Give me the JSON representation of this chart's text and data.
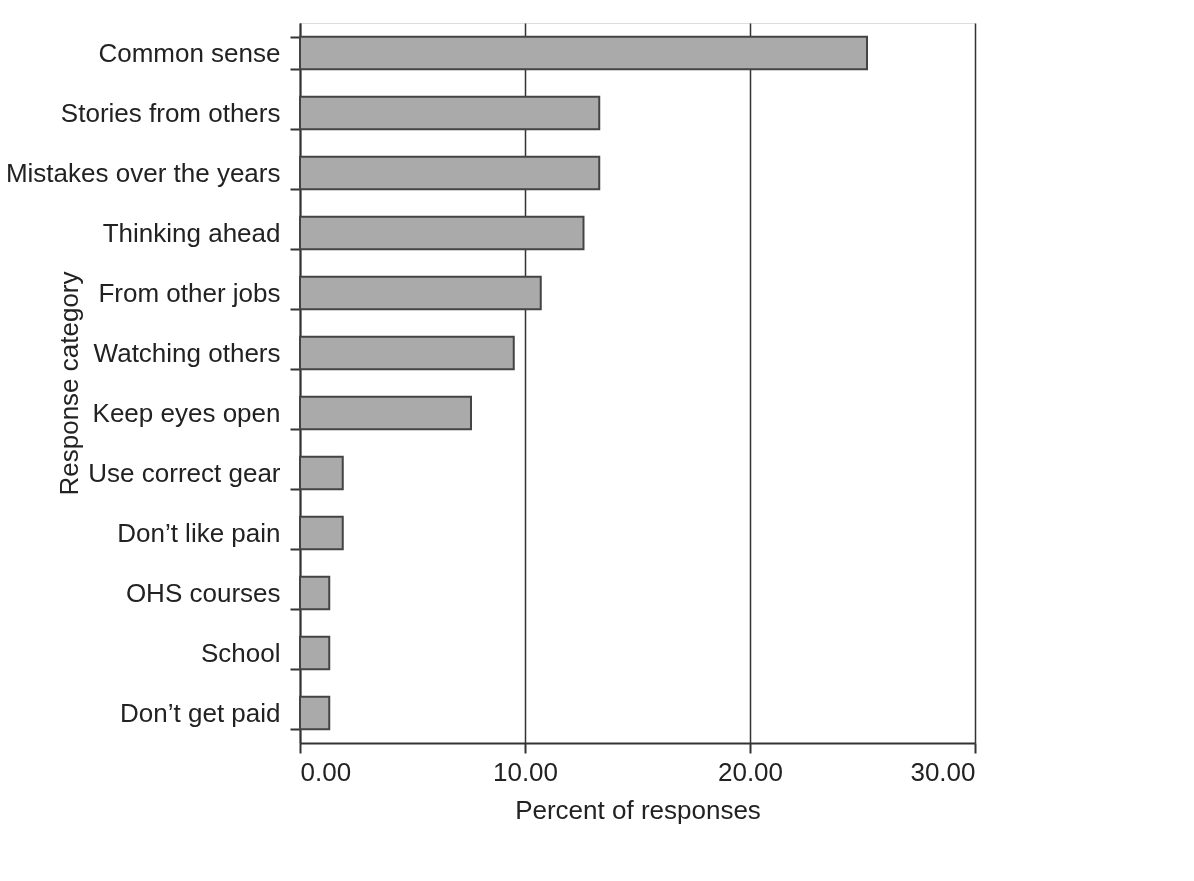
{
  "chart_data": {
    "type": "bar",
    "orientation": "horizontal",
    "xlabel": "Percent of responses",
    "ylabel": "Response category",
    "categories": [
      "Common sense",
      "Stories from others",
      "Mistakes over the years",
      "Thinking ahead",
      "From other jobs",
      "Watching others",
      "Keep eyes open",
      "Use correct gear",
      "Don’t like pain",
      "OHS courses",
      "School",
      "Don’t get paid"
    ],
    "values": [
      25.2,
      13.3,
      13.3,
      12.6,
      10.7,
      9.5,
      7.6,
      1.9,
      1.9,
      1.3,
      1.3,
      1.3
    ],
    "color": "#aaaaaa",
    "xlim": [
      0,
      30
    ],
    "xticks": [
      {
        "value": 0,
        "label": "0.00"
      },
      {
        "value": 10,
        "label": "10.00"
      },
      {
        "value": 20,
        "label": "20.00"
      },
      {
        "value": 30,
        "label": "30.00"
      }
    ],
    "grid": "x"
  }
}
